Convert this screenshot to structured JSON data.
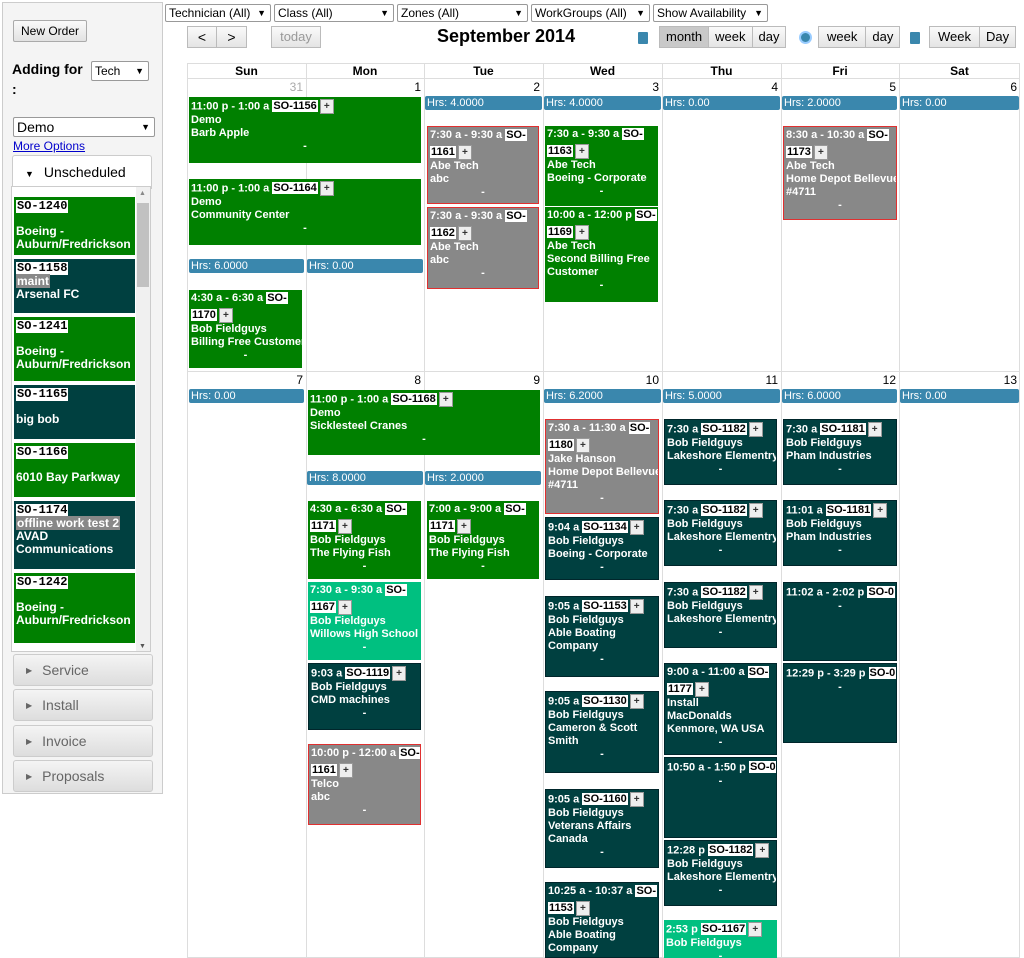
{
  "sidebar": {
    "new_order": "New Order",
    "adding_for": "Adding for",
    "adding_colon": ":",
    "adding_select": "Tech",
    "account_select": "Demo",
    "more_options": "More Options",
    "unscheduled_label": "Unscheduled",
    "unscheduled": [
      {
        "so": "SO-1240",
        "l1": "",
        "l2": "Boeing -",
        "l3": "Auburn/Fredrickson",
        "bg": "#008000"
      },
      {
        "so": "SO-1158",
        "l1": "maint",
        "l2": "Arsenal FC",
        "l3": "",
        "bg": "#004040"
      },
      {
        "so": "SO-1241",
        "l1": "",
        "l2": "Boeing -",
        "l3": "Auburn/Fredrickson",
        "bg": "#008000"
      },
      {
        "so": "SO-1165",
        "l1": "",
        "l2": "big bob",
        "l3": "",
        "bg": "#004040"
      },
      {
        "so": "SO-1166",
        "l1": "",
        "l2": "6010 Bay Parkway",
        "l3": "",
        "bg": "#008000"
      },
      {
        "so": "SO-1174",
        "l1": "offline work test 2",
        "l2": "AVAD",
        "l3": "Communications",
        "bg": "#004040"
      },
      {
        "so": "SO-1242",
        "l1": "",
        "l2": "Boeing -",
        "l3": "Auburn/Fredrickson",
        "bg": "#008000"
      }
    ],
    "sections": [
      "Service",
      "Install",
      "Invoice",
      "Proposals"
    ]
  },
  "toolbar": {
    "filters": [
      "Technician (All)",
      "Class (All)",
      "Zones (All)",
      "WorkGroups (All)",
      "Show Availability"
    ],
    "prev": "<",
    "next": ">",
    "today": "today",
    "title": "September 2014",
    "view_group1": [
      "month",
      "week",
      "day"
    ],
    "view_group2": [
      "week",
      "day"
    ],
    "view_group3": [
      "Week",
      "Day"
    ]
  },
  "calendar": {
    "days": [
      "Sun",
      "Mon",
      "Tue",
      "Wed",
      "Thu",
      "Fri",
      "Sat"
    ],
    "week1_dates": [
      "31",
      "1",
      "2",
      "3",
      "4",
      "5",
      "6"
    ],
    "week2_dates": [
      "7",
      "8",
      "9",
      "10",
      "11",
      "12",
      "13"
    ],
    "hrs": {
      "w1_tue": "Hrs: 4.0000",
      "w1_wed": "Hrs: 4.0000",
      "w1_thu": "Hrs: 0.00",
      "w1_fri": "Hrs: 2.0000",
      "w1_sat": "Hrs: 0.00",
      "w1_sun": "Hrs: 6.0000",
      "w1_mon": "Hrs: 0.00",
      "w2_sun": "Hrs: 0.00",
      "w2_wed": "Hrs: 6.2000",
      "w2_thu": "Hrs: 5.0000",
      "w2_fri": "Hrs: 6.0000",
      "w2_sat": "Hrs: 0.00",
      "w2_mon": "Hrs: 8.0000",
      "w2_tue": "Hrs: 2.0000"
    },
    "events": {
      "e1": {
        "time": "11:00 p - 1:00 a",
        "so": "SO-1156",
        "l1": "Demo",
        "l2": "Barb Apple"
      },
      "e2": {
        "time": "11:00 p - 1:00 a",
        "so": "SO-1164",
        "l1": "Demo",
        "l2": "Community Center"
      },
      "e3": {
        "time": "4:30 a - 6:30 a",
        "so": "SO-",
        "so2": "1170",
        "l1": "Bob Fieldguys",
        "l2": "Billing Free Customer"
      },
      "e4": {
        "time": "7:30 a - 9:30 a",
        "so": "SO-",
        "so2": "1161",
        "l1": "Abe Tech",
        "l2": "abc"
      },
      "e5": {
        "time": "7:30 a - 9:30 a",
        "so": "SO-",
        "so2": "1162",
        "l1": "Abe Tech",
        "l2": "abc"
      },
      "e6": {
        "time": "7:30 a - 9:30 a",
        "so": "SO-",
        "so2": "1163",
        "l1": "Abe Tech",
        "l2": "Boeing - Corporate"
      },
      "e7": {
        "time": "10:00 a - 12:00 p",
        "so": "SO-",
        "so2": "1169",
        "l1": "Abe Tech",
        "l2": "Second Billing Free",
        "l3": "Customer"
      },
      "e8": {
        "time": "8:30 a - 10:30 a",
        "so": "SO-",
        "so2": "1173",
        "l1": "Abe Tech",
        "l2": "Home Depot Bellevue",
        "l3": "#4711"
      },
      "e9": {
        "time": "11:00 p - 1:00 a",
        "so": "SO-1168",
        "l1": "Demo",
        "l2": "Sicklesteel Cranes"
      },
      "e10": {
        "time": "4:30 a - 6:30 a",
        "so": "SO-",
        "so2": "1171",
        "l1": "Bob Fieldguys",
        "l2": "The Flying Fish"
      },
      "e11": {
        "time": "7:30 a - 9:30 a",
        "so": "SO-",
        "so2": "1167",
        "l1": "Bob Fieldguys",
        "l2": "Willows High School"
      },
      "e12": {
        "time": "9:03 a",
        "so": "SO-1119",
        "l1": "Bob Fieldguys",
        "l2": "CMD machines"
      },
      "e13": {
        "time": "10:00 p - 12:00 a",
        "so": "SO-",
        "so2": "1161",
        "l1": "Telco",
        "l2": "abc"
      },
      "e14": {
        "time": "7:00 a - 9:00 a",
        "so": "SO-",
        "so2": "1171",
        "l1": "Bob Fieldguys",
        "l2": "The Flying Fish"
      },
      "e15": {
        "time": "7:30 a - 11:30 a",
        "so": "SO-",
        "so2": "1180",
        "l1": "Jake Hanson",
        "l2": "Home Depot Bellevue",
        "l3": "#4711"
      },
      "e16": {
        "time": "9:04 a",
        "so": "SO-1134",
        "l1": "Bob Fieldguys",
        "l2": "Boeing - Corporate"
      },
      "e17": {
        "time": "9:05 a",
        "so": "SO-1153",
        "l1": "Bob Fieldguys",
        "l2": "Able Boating",
        "l3": "Company"
      },
      "e18": {
        "time": "9:05 a",
        "so": "SO-1130",
        "l1": "Bob Fieldguys",
        "l2": "Cameron & Scott",
        "l3": "Smith"
      },
      "e19": {
        "time": "9:05 a",
        "so": "SO-1160",
        "l1": "Bob Fieldguys",
        "l2": "Veterans Affairs",
        "l3": "Canada"
      },
      "e20": {
        "time": "10:25 a - 10:37 a",
        "so": "SO-",
        "so2": "1153",
        "l1": "Bob Fieldguys",
        "l2": "Able Boating",
        "l3": "Company"
      },
      "e21": {
        "time": "7:30 a",
        "so": "SO-1182",
        "l1": "Bob Fieldguys",
        "l2": "Lakeshore Elementry"
      },
      "e22": {
        "time": "7:30 a",
        "so": "SO-1182",
        "l1": "Bob Fieldguys",
        "l2": "Lakeshore Elementry"
      },
      "e23": {
        "time": "7:30 a",
        "so": "SO-1182",
        "l1": "Bob Fieldguys",
        "l2": "Lakeshore Elementry"
      },
      "e24": {
        "time": "9:00 a - 11:00 a",
        "so": "SO-",
        "so2": "1177",
        "l1": "Install",
        "l2": "MacDonalds",
        "l3": "Kenmore, WA USA"
      },
      "e25": {
        "time": "10:50 a - 1:50 p",
        "so": "SO-0"
      },
      "e26": {
        "time": "12:28 p",
        "so": "SO-1182",
        "l1": "Bob Fieldguys",
        "l2": "Lakeshore Elementry"
      },
      "e27": {
        "time": "2:53 p",
        "so": "SO-1167",
        "l1": "Bob Fieldguys"
      },
      "e28": {
        "time": "7:30 a",
        "so": "SO-1181",
        "l1": "Bob Fieldguys",
        "l2": "Pham Industries"
      },
      "e29": {
        "time": "11:01 a",
        "so": "SO-1181",
        "l1": "Bob Fieldguys",
        "l2": "Pham Industries"
      },
      "e30": {
        "time": "11:02 a - 2:02 p",
        "so": "SO-0"
      },
      "e31": {
        "time": "12:29 p - 3:29 p",
        "so": "SO-0"
      }
    },
    "dash": "-",
    "plus": "+"
  }
}
